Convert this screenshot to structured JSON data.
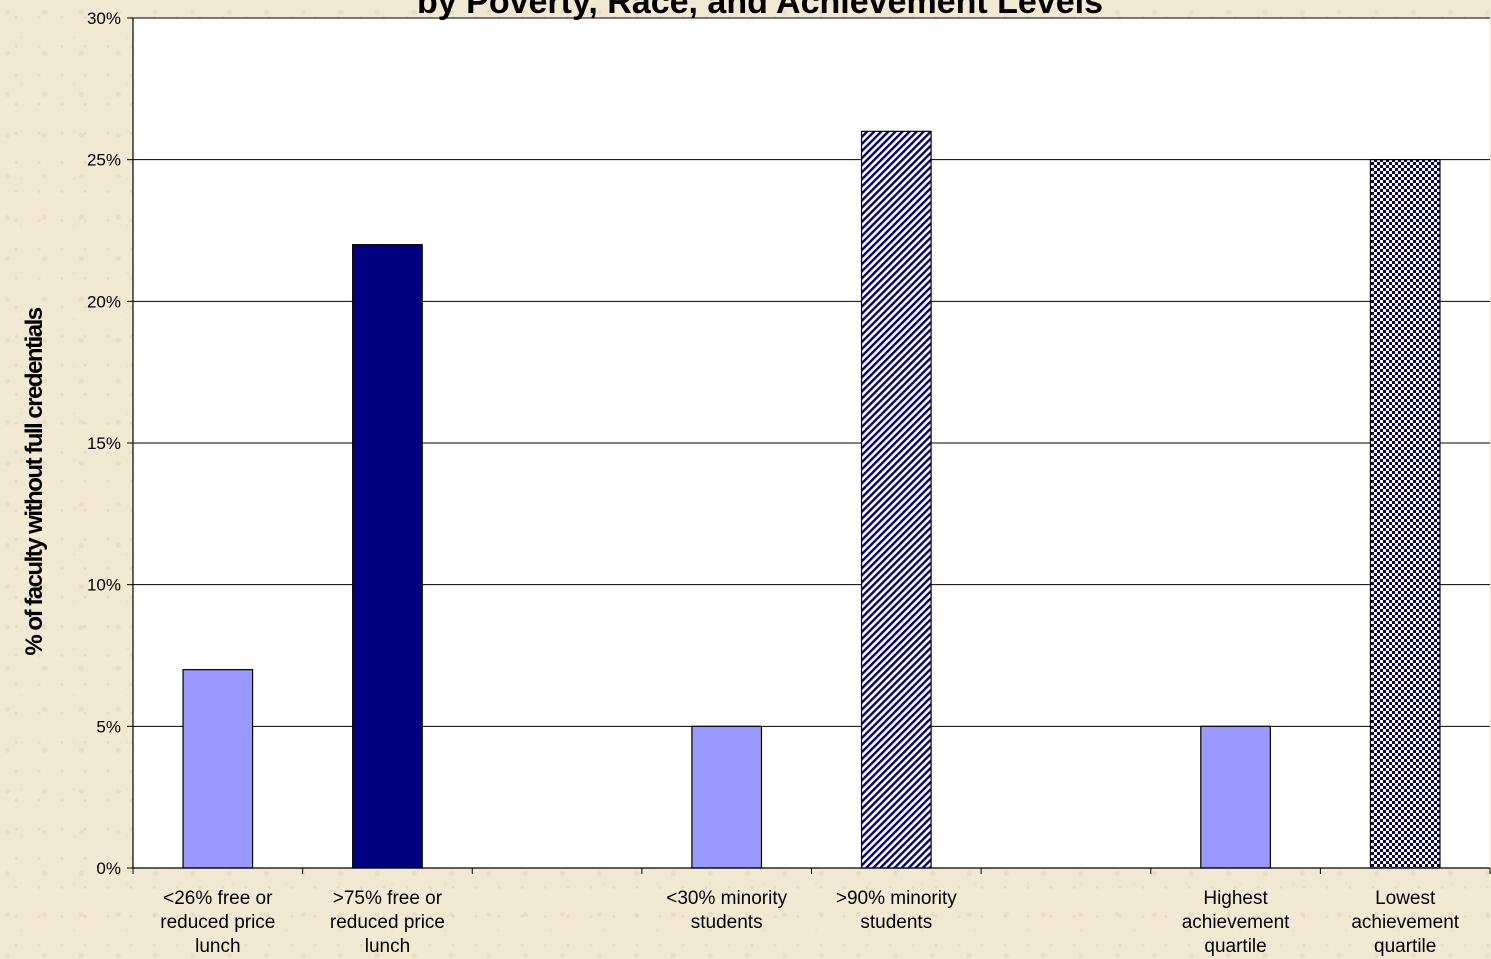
{
  "chart_data": {
    "type": "bar",
    "title": "by Poverty, Race, and Achievement Levels",
    "ylabel": "% of faculty without full credentials",
    "xlabel": "",
    "ylim": [
      0,
      30
    ],
    "yticks": [
      "0%",
      "5%",
      "10%",
      "15%",
      "20%",
      "25%",
      "30%"
    ],
    "grid": true,
    "legend": "none",
    "groups": 3,
    "categories": [
      "<26% free or reduced price lunch",
      ">75%  free or reduced price lunch",
      "<30% minority students",
      ">90% minority students",
      "Highest achievement quartile",
      "Lowest achievement quartile"
    ],
    "category_lines": [
      [
        "<26% free or",
        "reduced price",
        "lunch"
      ],
      [
        ">75%  free or",
        "reduced price",
        "lunch"
      ],
      [
        "<30% minority",
        "students"
      ],
      [
        ">90% minority",
        "students"
      ],
      [
        "Highest",
        "achievement",
        "quartile"
      ],
      [
        "Lowest",
        "achievement",
        "quartile"
      ]
    ],
    "values": [
      7,
      22,
      5,
      26,
      5,
      25
    ],
    "bar_styles": [
      "solid-light",
      "solid-dark",
      "solid-light",
      "diagonal-stripes",
      "solid-light",
      "checker"
    ],
    "colors": {
      "light_bar": "#9999ff",
      "dark_bar": "#000080",
      "pattern_fg": "#000080",
      "pattern_bg": "#ffffff",
      "plot_bg": "#ffffff",
      "grid": "#000000"
    }
  }
}
